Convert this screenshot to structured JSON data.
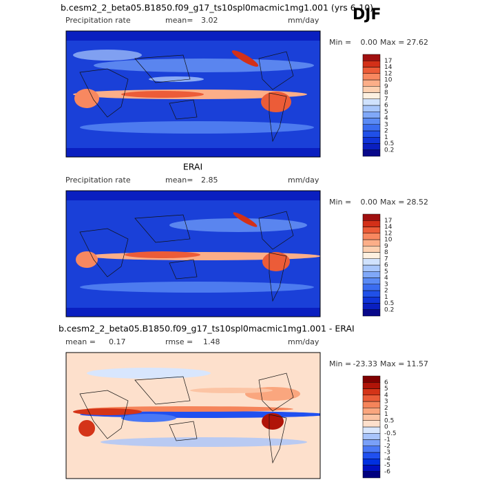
{
  "season": "DJF",
  "panels": [
    {
      "heading": "b.cesm2_2_beta05.B1850.f09_g17_ts10spl0macmic1mg1.001 (yrs 6-10)",
      "variable": "Precipitation rate",
      "stats": [
        {
          "label": "mean=",
          "value": "3.02"
        }
      ],
      "units": "mm/day",
      "range": {
        "min_label": "Min =",
        "min": "0.00",
        "max_label": "Max =",
        "max": "27.62"
      },
      "colorbar": {
        "labels": [
          0.2,
          0.5,
          1,
          2,
          3,
          4,
          5,
          6,
          7,
          8,
          9,
          10,
          12,
          14,
          17
        ],
        "colors": [
          "#08088a",
          "#0a1fc0",
          "#1034d8",
          "#2050e8",
          "#3a6cf0",
          "#5a8af5",
          "#80a8f8",
          "#a8c6fb",
          "#d0e2fd",
          "#fdf0e0",
          "#fdd0b0",
          "#fcae88",
          "#f88860",
          "#ec5c38",
          "#d33018",
          "#a01010"
        ]
      }
    },
    {
      "heading": "ERAI",
      "variable": "Precipitation rate",
      "stats": [
        {
          "label": "mean=",
          "value": "2.85"
        }
      ],
      "units": "mm/day",
      "range": {
        "min_label": "Min =",
        "min": "0.00",
        "max_label": "Max =",
        "max": "28.52"
      },
      "colorbar": {
        "labels": [
          0.2,
          0.5,
          1,
          2,
          3,
          4,
          5,
          6,
          7,
          8,
          9,
          10,
          12,
          14,
          17
        ],
        "colors": [
          "#08088a",
          "#0a1fc0",
          "#1034d8",
          "#2050e8",
          "#3a6cf0",
          "#5a8af5",
          "#80a8f8",
          "#a8c6fb",
          "#d0e2fd",
          "#fdf0e0",
          "#fdd0b0",
          "#fcae88",
          "#f88860",
          "#ec5c38",
          "#d33018",
          "#a01010"
        ]
      }
    },
    {
      "heading": "b.cesm2_2_beta05.B1850.f09_g17_ts10spl0macmic1mg1.001 - ERAI",
      "stats": [
        {
          "label": "mean =",
          "value": "0.17"
        },
        {
          "label": "rmse =",
          "value": "1.48"
        }
      ],
      "units": "mm/day",
      "range": {
        "min_label": "Min =",
        "min": "-23.33",
        "max_label": "Max =",
        "max": "11.57"
      },
      "colorbar": {
        "labels": [
          -6,
          -5,
          -4,
          -3,
          -2,
          -1,
          -0.5,
          0,
          0.5,
          1,
          2,
          3,
          4,
          5,
          6
        ],
        "colors": [
          "#00007f",
          "#0010c0",
          "#0030e0",
          "#2050f0",
          "#4a78f5",
          "#7aa0f8",
          "#a8c4fb",
          "#d8e6fd",
          "#fde0cc",
          "#fcc4a4",
          "#faa67e",
          "#f5845a",
          "#ea5c38",
          "#d43418",
          "#b01408",
          "#800000"
        ]
      }
    }
  ]
}
